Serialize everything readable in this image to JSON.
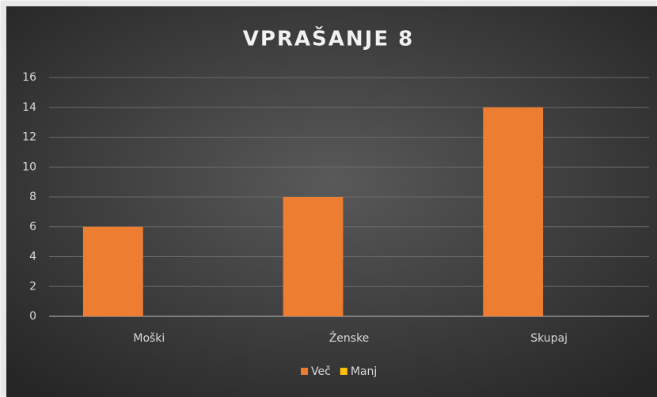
{
  "chart_data": {
    "type": "bar",
    "title": "VPRAŠANJE 8",
    "categories": [
      "Moški",
      "Ženske",
      "Skupaj"
    ],
    "series": [
      {
        "name": "Več",
        "color": "#ed7d31",
        "values": [
          6,
          8,
          14
        ]
      },
      {
        "name": "Manj",
        "color": "#ffc000",
        "values": [
          0,
          0,
          0
        ]
      }
    ],
    "ylim": [
      0,
      16
    ],
    "yticks": [
      0,
      2,
      4,
      6,
      8,
      10,
      12,
      14,
      16
    ],
    "grid": true,
    "legend": "bottom"
  }
}
